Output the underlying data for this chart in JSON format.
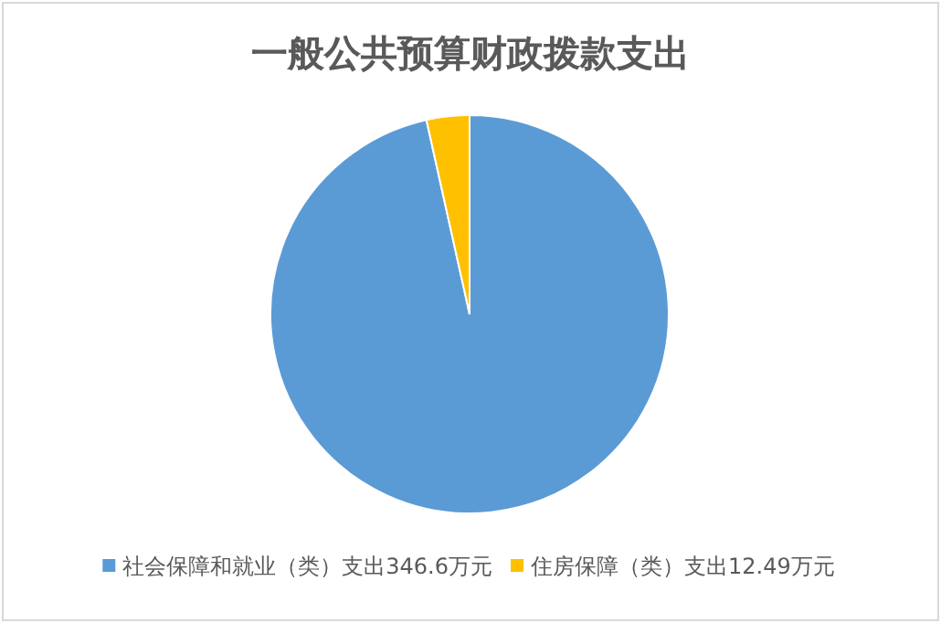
{
  "chart_data": {
    "type": "pie",
    "title": "一般公共预算财政拨款支出",
    "categories": [
      "社会保障和就业（类）支出346.6万元",
      "住房保障（类）支出12.49万元"
    ],
    "values": [
      346.6,
      12.49
    ],
    "colors": [
      "#5b9bd5",
      "#ffc000"
    ],
    "legend": "bottom"
  }
}
